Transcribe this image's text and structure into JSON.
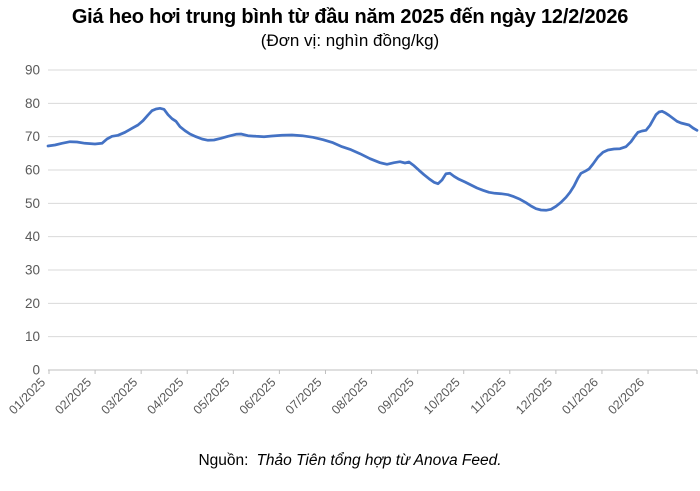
{
  "chart_data": {
    "type": "line",
    "title": "Giá heo hơi trung bình từ đầu năm 2025 đến ngày 12/2/2026",
    "subtitle": "(Đơn vị: nghìn đồng/kg)",
    "source_label": "Nguồn:",
    "source_text": "Thảo Tiên tổng hợp từ Anova Feed.",
    "legend": "none",
    "grid": "horizontal",
    "y_axis": {
      "min": 0,
      "max": 90,
      "tick_step": 10,
      "tick_labels": [
        "0",
        "10",
        "20",
        "30",
        "40",
        "50",
        "60",
        "70",
        "80",
        "90"
      ]
    },
    "x_axis": {
      "tick_labels": [
        "01/2025",
        "02/2025",
        "03/2025",
        "04/2025",
        "05/2025",
        "06/2025",
        "07/2025",
        "08/2025",
        "09/2025",
        "10/2025",
        "11/2025",
        "12/2025",
        "01/2026",
        "02/2026"
      ],
      "label_rotation_deg": -45
    },
    "series": [
      {
        "name": "Giá heo hơi (nghìn đồng/kg)",
        "color": "#4472C4",
        "x_unit": "plot-axis-offset-0-649",
        "points": [
          [
            0,
            67.2
          ],
          [
            7,
            67.5
          ],
          [
            14,
            68.0
          ],
          [
            22,
            68.5
          ],
          [
            29,
            68.4
          ],
          [
            37,
            68.0
          ],
          [
            47,
            67.8
          ],
          [
            54,
            68.0
          ],
          [
            59,
            69.3
          ],
          [
            64,
            70.1
          ],
          [
            70,
            70.4
          ],
          [
            77,
            71.3
          ],
          [
            84,
            72.5
          ],
          [
            90,
            73.5
          ],
          [
            95,
            74.8
          ],
          [
            100,
            76.5
          ],
          [
            104,
            77.8
          ],
          [
            108,
            78.3
          ],
          [
            112,
            78.5
          ],
          [
            116,
            78.2
          ],
          [
            120,
            76.6
          ],
          [
            124,
            75.4
          ],
          [
            128,
            74.6
          ],
          [
            132,
            73.0
          ],
          [
            137,
            71.8
          ],
          [
            142,
            70.8
          ],
          [
            148,
            70.0
          ],
          [
            154,
            69.3
          ],
          [
            160,
            68.9
          ],
          [
            166,
            69.0
          ],
          [
            173,
            69.5
          ],
          [
            180,
            70.1
          ],
          [
            188,
            70.7
          ],
          [
            193,
            70.8
          ],
          [
            200,
            70.3
          ],
          [
            208,
            70.1
          ],
          [
            216,
            70.0
          ],
          [
            224,
            70.2
          ],
          [
            234,
            70.4
          ],
          [
            244,
            70.5
          ],
          [
            254,
            70.3
          ],
          [
            265,
            69.8
          ],
          [
            275,
            69.1
          ],
          [
            285,
            68.2
          ],
          [
            294,
            67.0
          ],
          [
            303,
            66.1
          ],
          [
            312,
            64.9
          ],
          [
            322,
            63.4
          ],
          [
            332,
            62.2
          ],
          [
            339,
            61.7
          ],
          [
            346,
            62.2
          ],
          [
            352,
            62.5
          ],
          [
            357,
            62.1
          ],
          [
            361,
            62.4
          ],
          [
            366,
            61.3
          ],
          [
            371,
            59.9
          ],
          [
            376,
            58.6
          ],
          [
            381,
            57.4
          ],
          [
            386,
            56.3
          ],
          [
            390,
            55.9
          ],
          [
            394,
            57.0
          ],
          [
            398,
            58.9
          ],
          [
            402,
            59.0
          ],
          [
            406,
            58.1
          ],
          [
            411,
            57.2
          ],
          [
            417,
            56.4
          ],
          [
            423,
            55.5
          ],
          [
            429,
            54.6
          ],
          [
            435,
            53.9
          ],
          [
            441,
            53.3
          ],
          [
            447,
            53.0
          ],
          [
            453,
            52.9
          ],
          [
            460,
            52.6
          ],
          [
            466,
            52.0
          ],
          [
            472,
            51.2
          ],
          [
            478,
            50.2
          ],
          [
            483,
            49.2
          ],
          [
            488,
            48.4
          ],
          [
            493,
            48.0
          ],
          [
            498,
            47.9
          ],
          [
            503,
            48.2
          ],
          [
            508,
            49.1
          ],
          [
            513,
            50.3
          ],
          [
            518,
            51.8
          ],
          [
            522,
            53.3
          ],
          [
            526,
            55.2
          ],
          [
            530,
            57.6
          ],
          [
            533,
            59.0
          ],
          [
            537,
            59.6
          ],
          [
            541,
            60.3
          ],
          [
            545,
            61.8
          ],
          [
            550,
            63.9
          ],
          [
            555,
            65.3
          ],
          [
            560,
            66.0
          ],
          [
            566,
            66.3
          ],
          [
            572,
            66.4
          ],
          [
            578,
            67.0
          ],
          [
            583,
            68.5
          ],
          [
            587,
            70.2
          ],
          [
            590,
            71.3
          ],
          [
            594,
            71.7
          ],
          [
            598,
            71.9
          ],
          [
            602,
            73.4
          ],
          [
            605,
            75.0
          ],
          [
            608,
            76.6
          ],
          [
            611,
            77.4
          ],
          [
            614,
            77.6
          ],
          [
            617,
            77.2
          ],
          [
            621,
            76.4
          ],
          [
            625,
            75.5
          ],
          [
            629,
            74.6
          ],
          [
            633,
            74.1
          ],
          [
            637,
            73.8
          ],
          [
            641,
            73.5
          ],
          [
            645,
            72.6
          ],
          [
            649,
            71.9
          ]
        ]
      }
    ]
  }
}
